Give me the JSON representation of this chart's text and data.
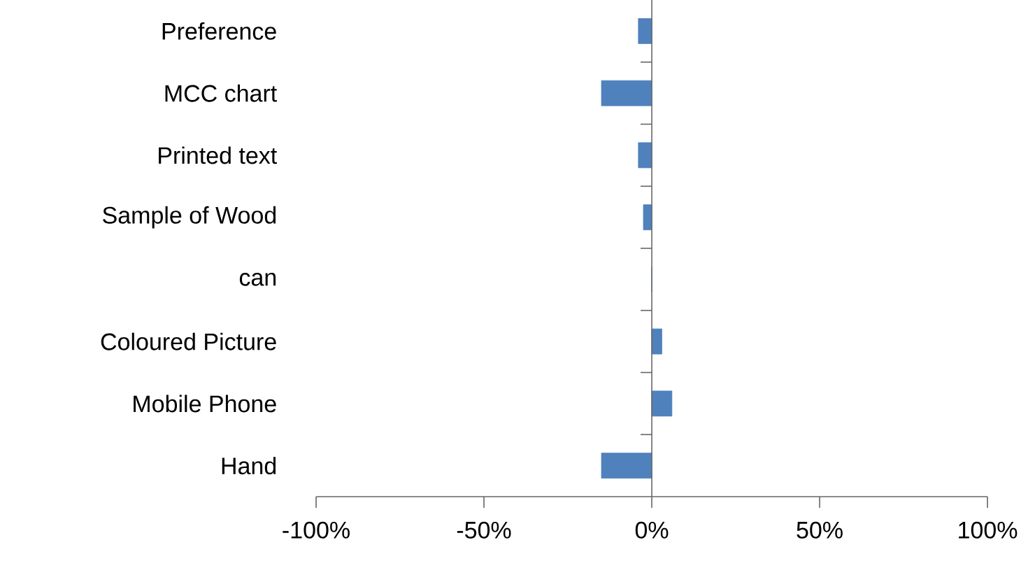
{
  "chart_data": {
    "type": "bar",
    "orientation": "horizontal",
    "categories": [
      "Preference",
      "MCC chart",
      "Printed text",
      "Sample of Wood",
      "can",
      "Coloured Picture",
      "Mobile Phone",
      "Hand"
    ],
    "values": [
      -4,
      -15,
      -4,
      -2.5,
      0,
      3,
      6,
      -15
    ],
    "color": "#4f81bd",
    "xlim": [
      -100,
      100
    ],
    "xticks": [
      {
        "value": -100,
        "label": "-100%"
      },
      {
        "value": -50,
        "label": "-50%"
      },
      {
        "value": 0,
        "label": "0%"
      },
      {
        "value": 50,
        "label": "50%"
      },
      {
        "value": 100,
        "label": "100%"
      }
    ]
  }
}
